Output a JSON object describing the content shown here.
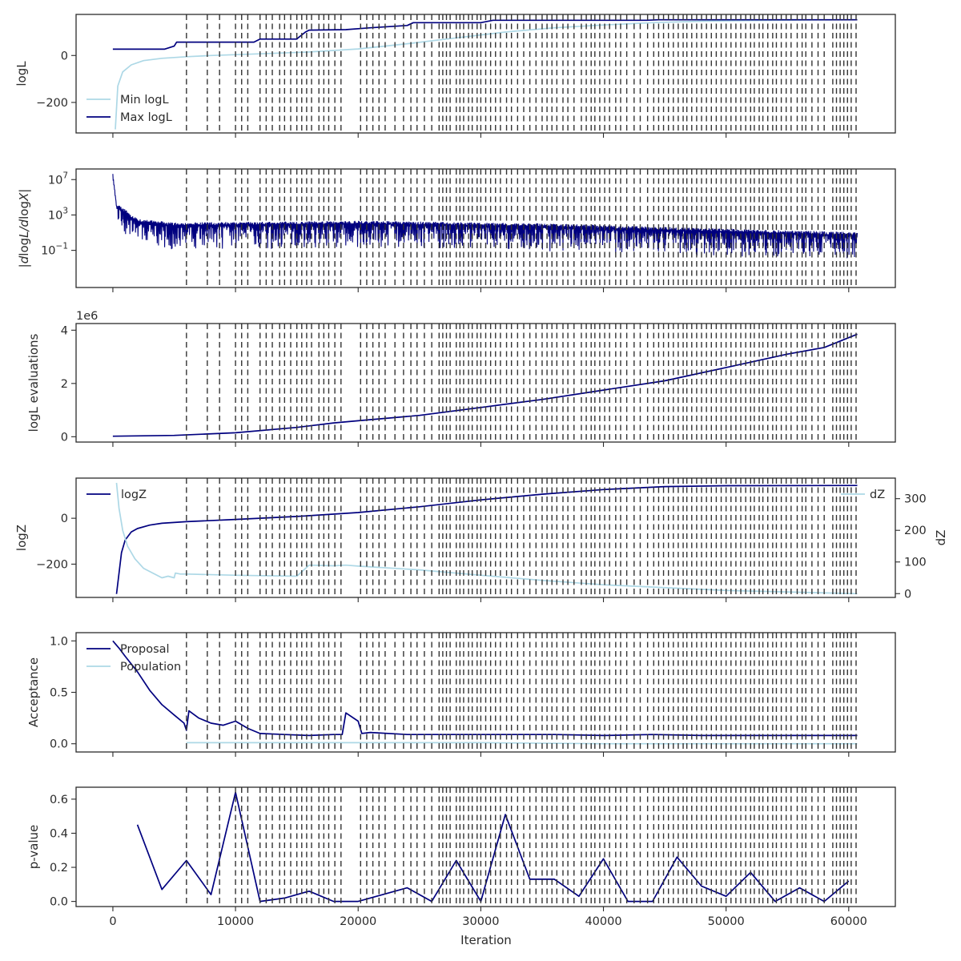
{
  "colors": {
    "dark": "#00007f",
    "light": "#add8e6",
    "vline": "#333333",
    "axis": "#2b2b2b"
  },
  "xlabel": "Iteration",
  "x_ticks": [
    0,
    10000,
    20000,
    30000,
    40000,
    50000,
    60000
  ],
  "x_tick_labels": [
    "0",
    "10000",
    "20000",
    "30000",
    "40000",
    "50000",
    "60000"
  ],
  "xlim": [
    -3000,
    63800
  ],
  "chart_data": [
    {
      "id": "logl",
      "type": "line",
      "ylabel": "logL",
      "ylim": [
        -330,
        175
      ],
      "y_ticks": [
        -200,
        0
      ],
      "y_tick_labels": [
        "−200",
        "0"
      ],
      "legend": "lower-left",
      "series": [
        {
          "name": "Min logL",
          "color": "#add8e6",
          "x": [
            200,
            400,
            800,
            1500,
            2500,
            4000,
            6000,
            8000,
            12000,
            16000,
            20000,
            24000,
            28000,
            32000,
            36000,
            40000,
            44000,
            48000,
            52000,
            56000,
            60700
          ],
          "y": [
            -315,
            -130,
            -70,
            -40,
            -22,
            -12,
            -5,
            0,
            7,
            15,
            28,
            50,
            75,
            100,
            118,
            130,
            140,
            146,
            149,
            151,
            152
          ]
        },
        {
          "name": "Max logL",
          "color": "#00007f",
          "x": [
            0,
            4200,
            5000,
            5200,
            11500,
            12000,
            15000,
            15100,
            15700,
            16000,
            19000,
            21000,
            24000,
            24500,
            30000,
            31000,
            43500,
            44500,
            60700
          ],
          "y": [
            27,
            27,
            40,
            57,
            57,
            70,
            70,
            75,
            100,
            108,
            110,
            118,
            128,
            140,
            140,
            150,
            150,
            152,
            152
          ]
        }
      ]
    },
    {
      "id": "gradient",
      "type": "line",
      "ylabel": "|d logL / d logX|",
      "ylog": true,
      "ylim_log10": [
        -5.2,
        8.2
      ],
      "y_ticks_log10": [
        7,
        3,
        -1
      ],
      "y_tick_labels": [
        "10^7",
        "10^3",
        "10^-1"
      ],
      "series": [
        {
          "name": "",
          "color": "#00007f",
          "x_range": [
            0,
            60700
          ],
          "baseline_log10": [
            [
              0,
              7.6
            ],
            [
              300,
              4
            ],
            [
              2000,
              2.2
            ],
            [
              5000,
              1.8
            ],
            [
              20000,
              2.0
            ],
            [
              35000,
              1.7
            ],
            [
              50000,
              1.1
            ],
            [
              60700,
              0.7
            ]
          ]
        }
      ]
    },
    {
      "id": "evaluations",
      "type": "line",
      "ylabel": "logL evaluations",
      "offset_text": "1e6",
      "ylim": [
        -0.2,
        4.25
      ],
      "y_ticks": [
        0,
        2,
        4
      ],
      "y_tick_labels": [
        "0",
        "2",
        "4"
      ],
      "series": [
        {
          "name": "",
          "color": "#00007f",
          "x": [
            0,
            5000,
            10000,
            15000,
            18000,
            20000,
            25000,
            30000,
            35000,
            40000,
            45000,
            50000,
            55000,
            58000,
            60700
          ],
          "y": [
            0.02,
            0.05,
            0.15,
            0.35,
            0.52,
            0.6,
            0.8,
            1.1,
            1.4,
            1.75,
            2.1,
            2.6,
            3.1,
            3.35,
            3.85
          ]
        }
      ]
    },
    {
      "id": "logz",
      "type": "line",
      "ylabel": "logZ",
      "ylim": [
        -345,
        175
      ],
      "y_ticks": [
        -200,
        0
      ],
      "y_tick_labels": [
        "−200",
        "0"
      ],
      "y2label": "dZ",
      "y2lim": [
        -12,
        365
      ],
      "y2_ticks": [
        0,
        100,
        200,
        300
      ],
      "y2_tick_labels": [
        "0",
        "100",
        "200",
        "300"
      ],
      "series": [
        {
          "name": "logZ",
          "axis": "left",
          "color": "#00007f",
          "x": [
            300,
            700,
            1000,
            1500,
            2000,
            3000,
            4000,
            6000,
            10000,
            15000,
            20000,
            25000,
            30000,
            35000,
            40000,
            45000,
            50000,
            60700
          ],
          "y": [
            -330,
            -150,
            -95,
            -60,
            -45,
            -30,
            -22,
            -15,
            -5,
            8,
            25,
            50,
            80,
            105,
            125,
            138,
            142,
            143
          ]
        },
        {
          "name": "dZ",
          "axis": "right",
          "color": "#add8e6",
          "x": [
            300,
            500,
            800,
            1200,
            1800,
            2500,
            4000,
            4500,
            5000,
            5100,
            5500,
            6000,
            10000,
            15000,
            16000,
            18000,
            19000,
            20000,
            25000,
            30000,
            35000,
            40000,
            50000,
            60700
          ],
          "y": [
            350,
            270,
            200,
            150,
            110,
            80,
            50,
            55,
            50,
            65,
            62,
            62,
            58,
            55,
            90,
            88,
            90,
            87,
            75,
            58,
            42,
            28,
            10,
            0
          ]
        }
      ]
    },
    {
      "id": "acceptance",
      "type": "line",
      "ylabel": "Acceptance",
      "ylim": [
        -0.08,
        1.08
      ],
      "y_ticks": [
        0.0,
        0.5,
        1.0
      ],
      "y_tick_labels": [
        "0.0",
        "0.5",
        "1.0"
      ],
      "legend": "upper-left",
      "series": [
        {
          "name": "Proposal",
          "color": "#00007f",
          "x": [
            0,
            500,
            1000,
            2000,
            3000,
            4000,
            5000,
            5800,
            6000,
            6200,
            7000,
            8000,
            9000,
            10000,
            11000,
            12000,
            14000,
            16000,
            18000,
            18700,
            19000,
            20000,
            20300,
            21000,
            24000,
            28000,
            32000,
            36000,
            40000,
            44000,
            48000,
            52000,
            56000,
            60700
          ],
          "y": [
            1.0,
            0.93,
            0.85,
            0.7,
            0.52,
            0.38,
            0.28,
            0.2,
            0.13,
            0.32,
            0.25,
            0.2,
            0.18,
            0.22,
            0.15,
            0.1,
            0.09,
            0.08,
            0.09,
            0.09,
            0.3,
            0.22,
            0.1,
            0.11,
            0.09,
            0.09,
            0.09,
            0.09,
            0.08,
            0.09,
            0.08,
            0.08,
            0.08,
            0.08
          ]
        },
        {
          "name": "Population",
          "color": "#add8e6",
          "x": [
            6000,
            20000,
            30000,
            40000,
            50000,
            60700
          ],
          "y": [
            0.01,
            0.01,
            0.01,
            0.0,
            0.0,
            0.0
          ]
        }
      ]
    },
    {
      "id": "pvalue",
      "type": "line",
      "ylabel": "p-value",
      "ylim": [
        -0.03,
        0.67
      ],
      "y_ticks": [
        0.0,
        0.2,
        0.4,
        0.6
      ],
      "y_tick_labels": [
        "0.0",
        "0.2",
        "0.4",
        "0.6"
      ],
      "series": [
        {
          "name": "",
          "color": "#00007f",
          "x": [
            2000,
            4000,
            6000,
            8000,
            10000,
            12000,
            14000,
            16000,
            18000,
            20000,
            22000,
            24000,
            26000,
            28000,
            30000,
            32000,
            34000,
            36000,
            38000,
            40000,
            42000,
            44000,
            46000,
            48000,
            50000,
            52000,
            54000,
            56000,
            58000,
            60000
          ],
          "y": [
            0.45,
            0.07,
            0.24,
            0.04,
            0.64,
            0.0,
            0.02,
            0.06,
            0.0,
            0.0,
            0.04,
            0.08,
            0.0,
            0.24,
            0.0,
            0.51,
            0.13,
            0.13,
            0.03,
            0.25,
            0.0,
            0.0,
            0.26,
            0.09,
            0.03,
            0.17,
            0.0,
            0.08,
            0.0,
            0.12
          ]
        }
      ]
    }
  ],
  "vertical_lines": [
    6000,
    7700,
    8700,
    10000,
    10500,
    11000,
    12000,
    12500,
    13000,
    13600,
    14000,
    14500,
    15000,
    15400,
    15800,
    16200,
    16800,
    17200,
    17600,
    18100,
    18600,
    20200,
    20700,
    21200,
    21700,
    22200,
    23000,
    23700,
    24300,
    24800,
    25400,
    26000,
    26600,
    26900,
    27200,
    27500,
    28000,
    28300,
    28600,
    29000,
    29300,
    29700,
    30000,
    30400,
    30800,
    31200,
    31600,
    32100,
    32500,
    33000,
    33500,
    34000,
    34500,
    35000,
    35400,
    35800,
    36200,
    36700,
    37100,
    37600,
    38200,
    38600,
    39000,
    39300,
    39700,
    40100,
    40500,
    41000,
    41400,
    41900,
    42500,
    43000,
    43600,
    44100,
    44500,
    44900,
    45300,
    45700,
    46100,
    46500,
    46800,
    47200,
    47600,
    48000,
    48400,
    48800,
    49200,
    49600,
    50000,
    50400,
    50800,
    51200,
    51600,
    52000,
    52300,
    52700,
    53000,
    53400,
    53800,
    54100,
    54500,
    54900,
    55300,
    55800,
    56200,
    56500,
    57000,
    57500,
    58000,
    58700,
    59000,
    59300,
    59600,
    59900,
    60200,
    60600
  ]
}
